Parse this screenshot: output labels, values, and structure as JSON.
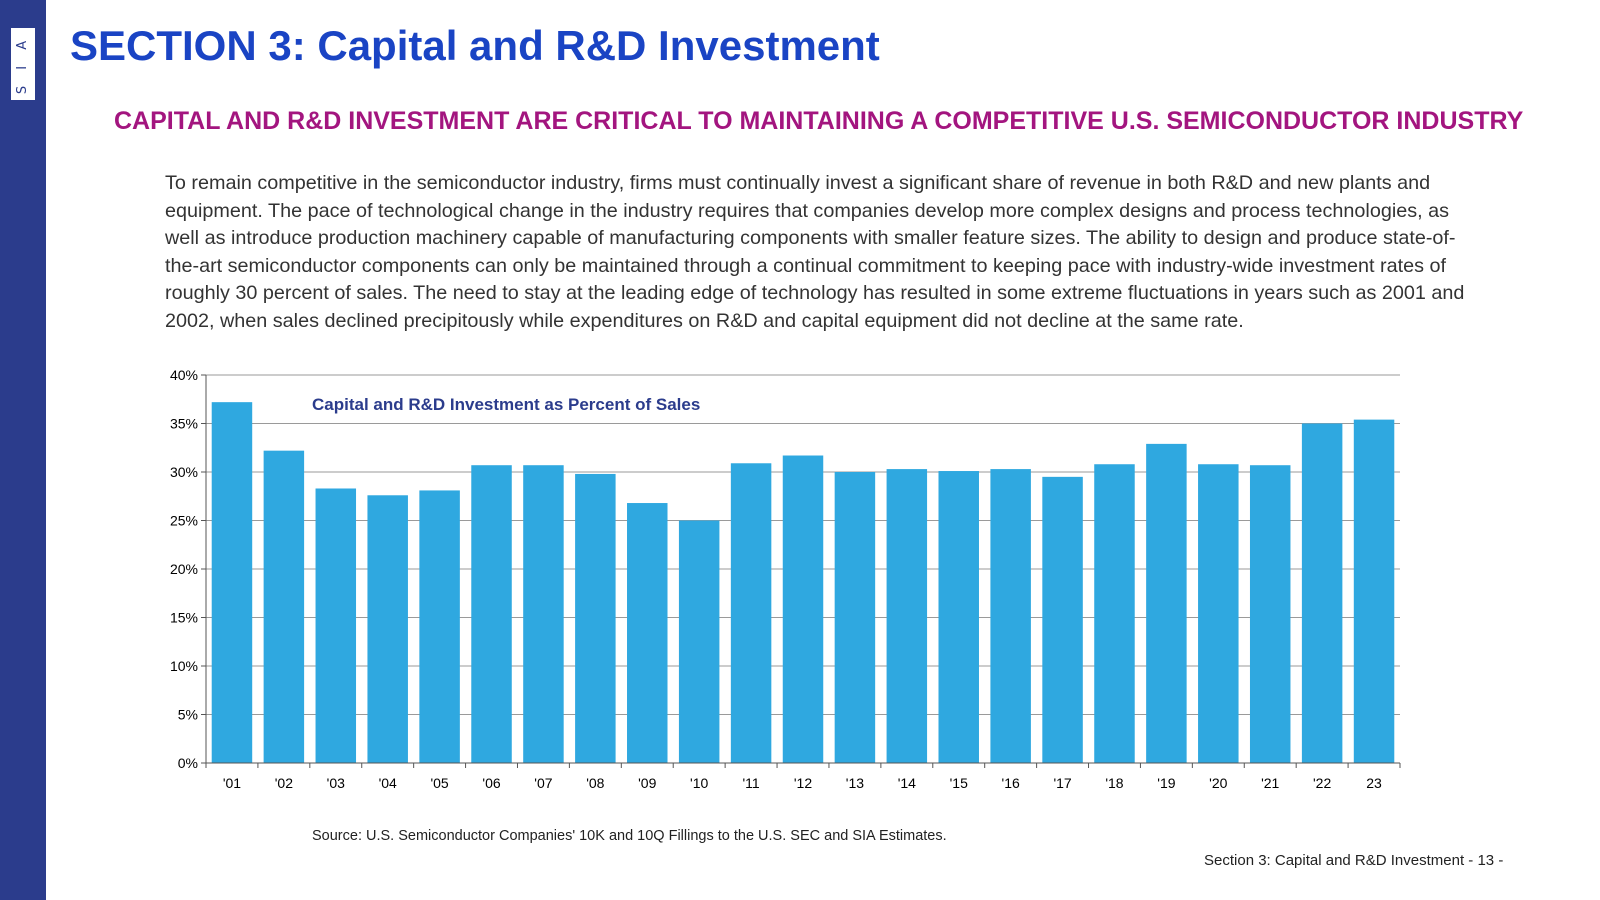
{
  "logo": {
    "text": "S I A"
  },
  "header": {
    "title": "SECTION 3: Capital and R&D Investment",
    "subtitle": "CAPITAL AND R&D INVESTMENT ARE CRITICAL TO MAINTAINING A COMPETITIVE U.S. SEMICONDUCTOR INDUSTRY"
  },
  "body": {
    "paragraph": "To remain competitive in the semiconductor industry, firms must continually invest a significant share of revenue in both R&D and new plants and equipment. The pace of technological change in the industry requires that companies develop more complex designs and process technologies, as well as introduce production machinery capable of manufacturing components with smaller feature sizes. The ability to design and produce state-of-the-art semiconductor components can only be maintained through a continual commitment to keeping pace with industry-wide investment rates of roughly 30 percent of sales. The need to stay at the leading edge of technology has resulted in some extreme fluctuations in years such as 2001 and 2002, when sales declined precipitously while expenditures on R&D and capital equipment did not decline at the same rate."
  },
  "chart_data": {
    "type": "bar",
    "title": "Capital and R&D Investment as Percent of Sales",
    "categories": [
      "'01",
      "'02",
      "'03",
      "'04",
      "'05",
      "'06",
      "'07",
      "'08",
      "'09",
      "'10",
      "'11",
      "'12",
      "'13",
      "'14",
      "'15",
      "'16",
      "'17",
      "'18",
      "'19",
      "'20",
      "'21",
      "'22",
      "23"
    ],
    "values": [
      37.2,
      32.2,
      28.3,
      27.6,
      28.1,
      30.7,
      30.7,
      29.8,
      26.8,
      25.0,
      30.9,
      31.7,
      30.0,
      30.3,
      30.1,
      30.3,
      29.5,
      30.8,
      32.9,
      30.8,
      30.7,
      35.0,
      35.4
    ],
    "ylim": [
      0,
      40
    ],
    "yticks": [
      0,
      5,
      10,
      15,
      20,
      25,
      30,
      35,
      40
    ],
    "ytick_labels": [
      "0%",
      "5%",
      "10%",
      "15%",
      "20%",
      "25%",
      "30%",
      "35%",
      "40%"
    ],
    "xlabel": "",
    "ylabel": "",
    "grid": true,
    "bar_color": "#2fa8e0",
    "grid_color": "#9a9a9a"
  },
  "source": "Source: U.S. Semiconductor Companies' 10K and 10Q Fillings to the U.S. SEC and SIA Estimates.",
  "footer": "Section 3: Capital and R&D Investment  - 13 -"
}
